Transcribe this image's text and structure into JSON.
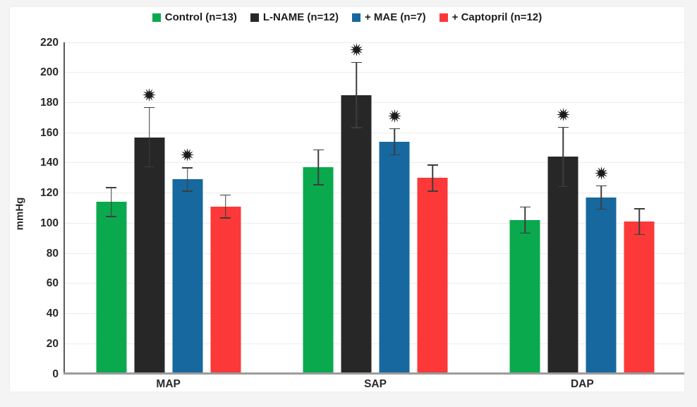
{
  "page": {
    "background": "#f4f4f5",
    "panel_background": "#ffffff"
  },
  "chart_data": {
    "type": "bar",
    "title": "",
    "xlabel": "",
    "ylabel": "mmHg",
    "ylim": [
      0,
      220
    ],
    "yticks": [
      0,
      20,
      40,
      60,
      80,
      100,
      120,
      140,
      160,
      180,
      200,
      220
    ],
    "categories": [
      "MAP",
      "SAP",
      "DAP"
    ],
    "series": [
      {
        "name": "Control (n=13)",
        "color": "#0aa94e",
        "values": [
          114,
          137,
          102
        ],
        "errors": [
          10,
          12,
          9
        ],
        "significant": [
          false,
          false,
          false
        ]
      },
      {
        "name": "L-NAME (n=12)",
        "color": "#272727",
        "values": [
          157,
          185,
          144
        ],
        "errors": [
          20,
          22,
          20
        ],
        "significant": [
          true,
          true,
          true
        ]
      },
      {
        "name": "+ MAE (n=7)",
        "color": "#17689f",
        "values": [
          129,
          154,
          117
        ],
        "errors": [
          8,
          9,
          8
        ],
        "significant": [
          true,
          true,
          true
        ]
      },
      {
        "name": "+ Captopril (n=12)",
        "color": "#fc3838",
        "values": [
          111,
          130,
          101
        ],
        "errors": [
          8,
          9,
          9
        ],
        "significant": [
          false,
          false,
          false
        ]
      }
    ],
    "significance_marker": "✹",
    "legend_position": "top",
    "grid": true,
    "error_bar_color": "#3d3d3d",
    "axis_color": "#5a5a5a",
    "baseline_color": "#9b9b9b",
    "gridline_color": "#ececec",
    "text_color": "#29292b"
  }
}
